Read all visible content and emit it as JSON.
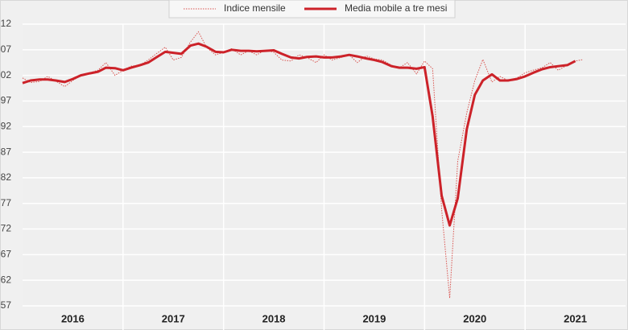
{
  "chart_data": {
    "type": "line",
    "x": [
      2016.0,
      2016.08,
      2016.17,
      2016.25,
      2016.33,
      2016.42,
      2016.5,
      2016.58,
      2016.67,
      2016.75,
      2016.83,
      2016.92,
      2017.0,
      2017.08,
      2017.17,
      2017.25,
      2017.33,
      2017.42,
      2017.5,
      2017.58,
      2017.67,
      2017.75,
      2017.83,
      2017.92,
      2018.0,
      2018.08,
      2018.17,
      2018.25,
      2018.33,
      2018.42,
      2018.5,
      2018.58,
      2018.67,
      2018.75,
      2018.83,
      2018.92,
      2019.0,
      2019.08,
      2019.17,
      2019.25,
      2019.33,
      2019.42,
      2019.5,
      2019.58,
      2019.67,
      2019.75,
      2019.83,
      2019.92,
      2020.0,
      2020.08,
      2020.17,
      2020.25,
      2020.33,
      2020.42,
      2020.5,
      2020.58,
      2020.67,
      2020.75,
      2020.83,
      2020.92,
      2021.0,
      2021.08,
      2021.17,
      2021.25,
      2021.33,
      2021.42,
      2021.5,
      2021.58
    ],
    "series": [
      {
        "name": "Indice mensile",
        "color": "#d9534f",
        "line_style": "dotted",
        "values": [
          101.5,
          100.6,
          100.8,
          101.8,
          100.9,
          99.8,
          101.0,
          102.0,
          102.5,
          103.0,
          104.5,
          102.0,
          103.0,
          103.8,
          104.0,
          105.0,
          106.2,
          107.5,
          105.0,
          105.5,
          108.5,
          110.5,
          107.5,
          106.0,
          106.5,
          107.2,
          106.0,
          106.8,
          106.0,
          107.0,
          106.5,
          105.0,
          104.8,
          106.0,
          105.5,
          104.5,
          106.0,
          105.0,
          105.5,
          106.0,
          104.5,
          105.8,
          105.2,
          105.0,
          104.0,
          103.5,
          104.5,
          102.3,
          104.8,
          103.3,
          75.8,
          58.5,
          85.3,
          94.7,
          101.0,
          105.1,
          100.7,
          101.8,
          101.0,
          101.5,
          102.5,
          103.0,
          103.5,
          104.5,
          103.0,
          104.0,
          104.8,
          105.1
        ]
      },
      {
        "name": "Media mobile a tre mesi",
        "color": "#cc2229",
        "line_style": "solid",
        "values": [
          100.5,
          101.0,
          101.2,
          101.2,
          101.0,
          100.7,
          101.3,
          102.0,
          102.4,
          102.7,
          103.5,
          103.4,
          103.0,
          103.5,
          104.0,
          104.5,
          105.5,
          106.6,
          106.4,
          106.2,
          107.8,
          108.2,
          107.6,
          106.6,
          106.5,
          107.0,
          106.8,
          106.8,
          106.7,
          106.8,
          106.9,
          106.2,
          105.5,
          105.3,
          105.6,
          105.7,
          105.5,
          105.5,
          105.7,
          106.0,
          105.7,
          105.3,
          105.0,
          104.6,
          103.8,
          103.5,
          103.5,
          103.3,
          103.6,
          94.0,
          78.5,
          72.7,
          78.0,
          91.5,
          98.2,
          101.0,
          102.2,
          101.0,
          101.0,
          101.3,
          101.8,
          102.5,
          103.2,
          103.6,
          103.8,
          104.0,
          104.8,
          null
        ]
      }
    ],
    "xlim": [
      2016,
      2022
    ],
    "xticks": [
      {
        "value": 2016.5,
        "label": "2016"
      },
      {
        "value": 2017.5,
        "label": "2017"
      },
      {
        "value": 2018.5,
        "label": "2018"
      },
      {
        "value": 2019.5,
        "label": "2019"
      },
      {
        "value": 2020.5,
        "label": "2020"
      },
      {
        "value": 2021.5,
        "label": "2021"
      }
    ],
    "xgrid": [
      2017,
      2018,
      2019,
      2020,
      2021
    ],
    "ylim": [
      57,
      112
    ],
    "yticks": [
      57,
      62,
      67,
      72,
      77,
      82,
      87,
      92,
      97,
      {
        "value": 102,
        "label": "02"
      },
      {
        "value": 107,
        "label": "07"
      },
      {
        "value": 112,
        "label": "12"
      }
    ],
    "grid": true,
    "legend": "top"
  }
}
